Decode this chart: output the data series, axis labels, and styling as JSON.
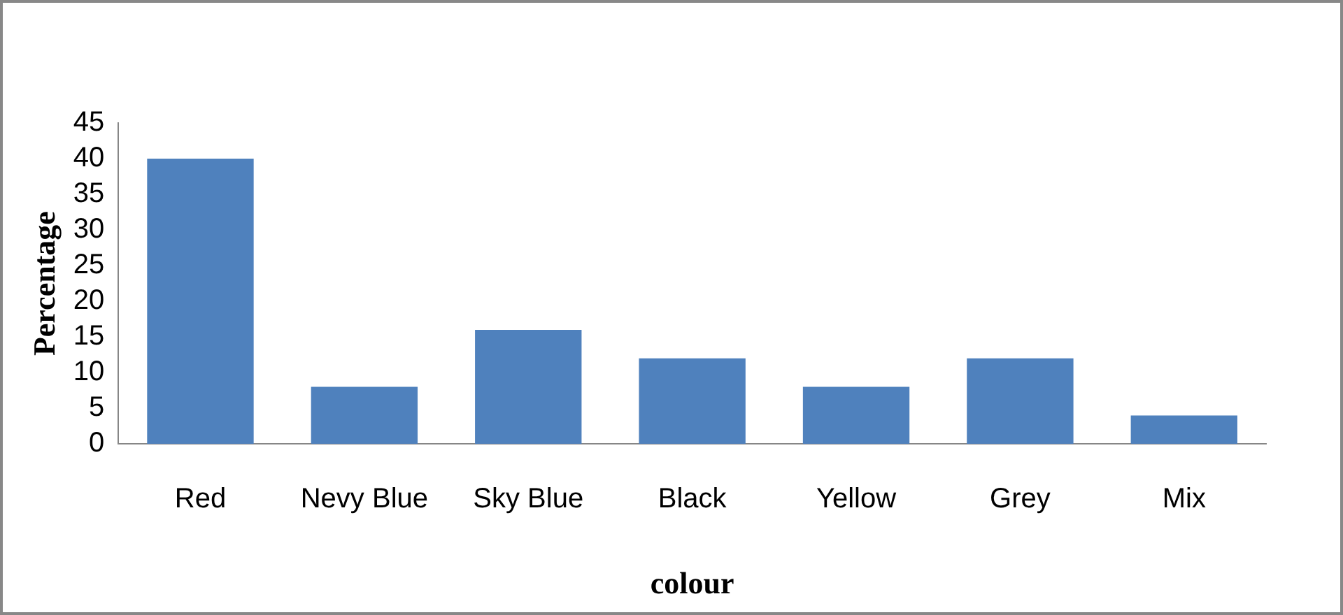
{
  "chart_data": {
    "type": "bar",
    "xlabel": "colour",
    "ylabel": "Percentage",
    "categories": [
      "Red",
      "Nevy Blue",
      "Sky Blue",
      "Black",
      "Yellow",
      "Grey",
      "Mix"
    ],
    "values": [
      40,
      8,
      16,
      12,
      8,
      12,
      4
    ],
    "color": "#4f81bd",
    "ylim": [
      0,
      45
    ],
    "yticks": [
      0,
      5,
      10,
      15,
      20,
      25,
      30,
      35,
      40,
      45
    ],
    "grid": false,
    "legend": false
  }
}
